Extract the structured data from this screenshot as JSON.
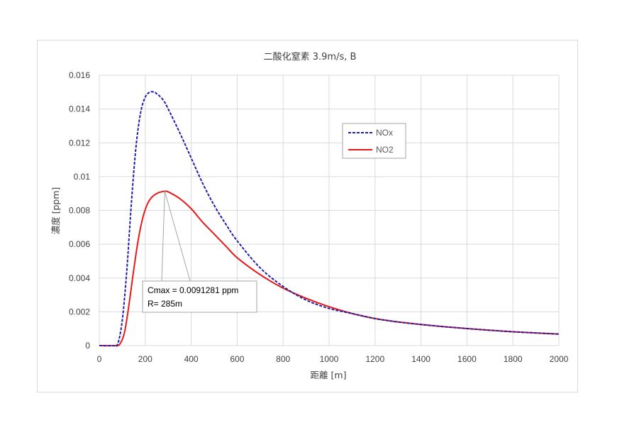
{
  "chart_data": {
    "type": "line",
    "title": "二酸化窒素  3.9m/s, B",
    "xlabel": "距離 [m]",
    "ylabel": "濃度 [ppm]",
    "xlim": [
      0,
      2000
    ],
    "ylim": [
      0,
      0.016
    ],
    "grid": true,
    "legend_position": "upper-right-inside",
    "x_ticks": [
      "0",
      "200",
      "400",
      "600",
      "800",
      "1000",
      "1200",
      "1400",
      "1600",
      "1800",
      "2000"
    ],
    "y_ticks": [
      "0",
      "0.002",
      "0.004",
      "0.006",
      "0.008",
      "0.01",
      "0.012",
      "0.014",
      "0.016"
    ],
    "series": [
      {
        "name": "NOx",
        "color": "#1f1fa8",
        "style": "dashed",
        "x": [
          0,
          60,
          80,
          100,
          120,
          140,
          160,
          180,
          200,
          220,
          240,
          250,
          260,
          280,
          300,
          350,
          400,
          450,
          500,
          550,
          600,
          700,
          800,
          900,
          1000,
          1100,
          1200,
          1300,
          1400,
          1500,
          1600,
          1700,
          1800,
          1900,
          2000
        ],
        "y": [
          0,
          0,
          0.0001,
          0.0015,
          0.0045,
          0.0085,
          0.0118,
          0.0138,
          0.0147,
          0.015,
          0.015,
          0.0149,
          0.0148,
          0.0145,
          0.014,
          0.0126,
          0.0111,
          0.0096,
          0.0083,
          0.0072,
          0.0062,
          0.0046,
          0.0035,
          0.0027,
          0.0022,
          0.0019,
          0.0016,
          0.0014,
          0.00125,
          0.00112,
          0.00101,
          0.00091,
          0.00082,
          0.00075,
          0.00068
        ]
      },
      {
        "name": "NO2",
        "color": "#e8191a",
        "style": "solid",
        "x": [
          0,
          70,
          90,
          110,
          130,
          150,
          170,
          190,
          210,
          230,
          250,
          270,
          285,
          300,
          350,
          400,
          450,
          500,
          550,
          600,
          700,
          800,
          900,
          1000,
          1100,
          1200,
          1300,
          1400,
          1500,
          1600,
          1700,
          1800,
          1900,
          2000
        ],
        "y": [
          0,
          0,
          0.0001,
          0.0008,
          0.0025,
          0.0045,
          0.0063,
          0.0076,
          0.0084,
          0.0088,
          0.009,
          0.0091,
          0.0091281,
          0.0091,
          0.0087,
          0.0081,
          0.0073,
          0.0066,
          0.0059,
          0.0052,
          0.0042,
          0.0034,
          0.0028,
          0.0023,
          0.0019,
          0.0016,
          0.0014,
          0.00125,
          0.00112,
          0.00101,
          0.00091,
          0.00082,
          0.00075,
          0.00068
        ]
      }
    ],
    "annotation": {
      "lines": [
        "Cmax = 0.0091281 ppm",
        "R= 285m"
      ],
      "peak_x": 285,
      "peak_y": 0.0091281
    }
  }
}
